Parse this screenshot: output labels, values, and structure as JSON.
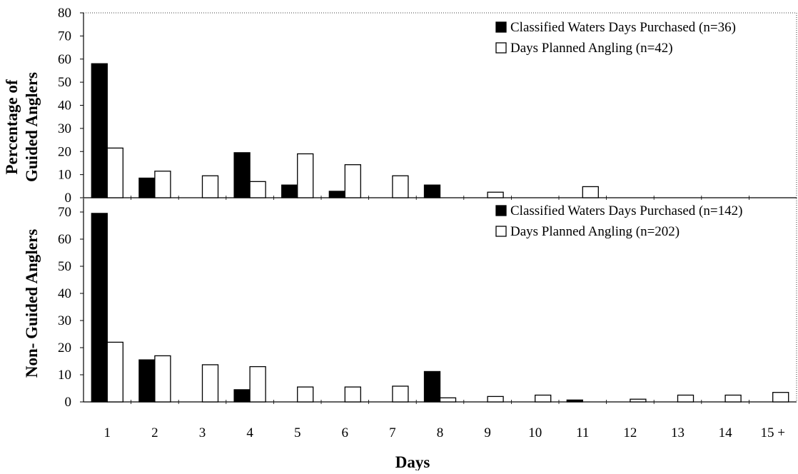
{
  "ylabel": "Percentage of",
  "xlabel": "Days",
  "categories": [
    "1",
    "2",
    "3",
    "4",
    "5",
    "6",
    "7",
    "8",
    "9",
    "10",
    "11",
    "12",
    "13",
    "14",
    "15 +"
  ],
  "colors": {
    "purchased": "#000000",
    "planned": "#ffffff",
    "outline": "#000000"
  },
  "chart_data": [
    {
      "type": "bar",
      "panel_label": "Guided Anglers",
      "ylim": [
        0,
        80
      ],
      "yticks": [
        0,
        10,
        20,
        30,
        40,
        50,
        60,
        70,
        80
      ],
      "grid": false,
      "legend_position": "top-right",
      "categories": [
        "1",
        "2",
        "3",
        "4",
        "5",
        "6",
        "7",
        "8",
        "9",
        "10",
        "11",
        "12",
        "13",
        "14",
        "15 +"
      ],
      "series": [
        {
          "name": "Classified Waters Days Purchased (n=36)",
          "fill": "#000000",
          "values": [
            58,
            8.5,
            0,
            19.5,
            5.5,
            2.8,
            0,
            5.5,
            0,
            0,
            0,
            0,
            0,
            0,
            0
          ]
        },
        {
          "name": "Days Planned Angling (n=42)",
          "fill": "#ffffff",
          "values": [
            21.5,
            11.5,
            9.5,
            7,
            19,
            14.3,
            9.5,
            0,
            2.4,
            0,
            4.8,
            0,
            0,
            0,
            0
          ]
        }
      ]
    },
    {
      "type": "bar",
      "panel_label": "Non- Guided Anglers",
      "ylim": [
        0,
        75
      ],
      "yticks": [
        0,
        10,
        20,
        30,
        40,
        50,
        60,
        70
      ],
      "grid": false,
      "legend_position": "top-right",
      "categories": [
        "1",
        "2",
        "3",
        "4",
        "5",
        "6",
        "7",
        "8",
        "9",
        "10",
        "11",
        "12",
        "13",
        "14",
        "15 +"
      ],
      "series": [
        {
          "name": "Classified Waters Days Purchased (n=142)",
          "fill": "#000000",
          "values": [
            69.5,
            15.5,
            0,
            4.5,
            0,
            0,
            0,
            11.2,
            0,
            0,
            0.7,
            0,
            0,
            0,
            0
          ]
        },
        {
          "name": "Days Planned Angling (n=202)",
          "fill": "#ffffff",
          "values": [
            22,
            17,
            13.7,
            13,
            5.5,
            5.5,
            5.8,
            1.5,
            2,
            2.5,
            0,
            1,
            2.5,
            2.5,
            3.5
          ]
        }
      ]
    }
  ]
}
